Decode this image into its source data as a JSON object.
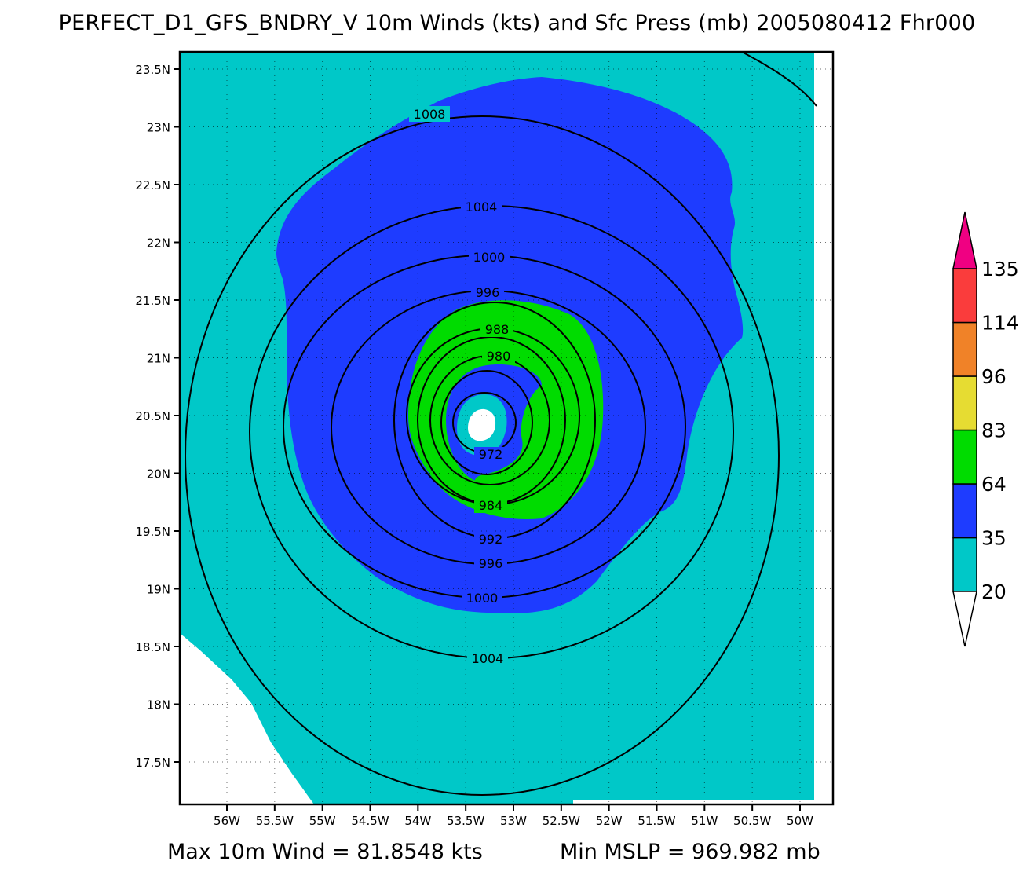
{
  "title": "PERFECT_D1_GFS_BNDRY_V 10m Winds (kts) and Sfc Press (mb) 2005080412 Fhr000",
  "footer": {
    "max_wind": "Max 10m Wind = 81.8548 kts",
    "min_mslp": "Min MSLP = 969.982 mb"
  },
  "map": {
    "center": {
      "lon": -53.2,
      "lat": 20.42
    },
    "lon_range": [
      -56.35,
      -49.6
    ],
    "lat_range": [
      17.15,
      23.65
    ],
    "lon_ticks": [
      "56W",
      "55.5W",
      "55W",
      "54.5W",
      "54W",
      "53.5W",
      "53W",
      "52.5W",
      "52W",
      "51.5W",
      "51W",
      "50.5W",
      "50W"
    ],
    "lat_ticks": [
      "17.5N",
      "18N",
      "18.5N",
      "19N",
      "19.5N",
      "20N",
      "20.5N",
      "21N",
      "21.5N",
      "22N",
      "22.5N",
      "23N",
      "23.5N"
    ],
    "gridlines": "dotted"
  },
  "wind_legend": {
    "levels": [
      "20",
      "35",
      "64",
      "83",
      "96",
      "114",
      "135"
    ],
    "colors": [
      "#ffffff",
      "#00c8c8",
      "#1e3cff",
      "#00dc00",
      "#e6dc32",
      "#f08228",
      "#fa3c3c",
      "#f00082"
    ]
  },
  "contours": {
    "color": "#000000",
    "labels": [
      "1008",
      "1004",
      "1000",
      "996",
      "988",
      "980",
      "972",
      "984",
      "992",
      "996",
      "1000",
      "1004"
    ]
  },
  "colors": {
    "calm": "#ffffff",
    "ts_band": "#00c8c8",
    "strong_band": "#1e3cff",
    "hurricane_band": "#00dc00"
  }
}
